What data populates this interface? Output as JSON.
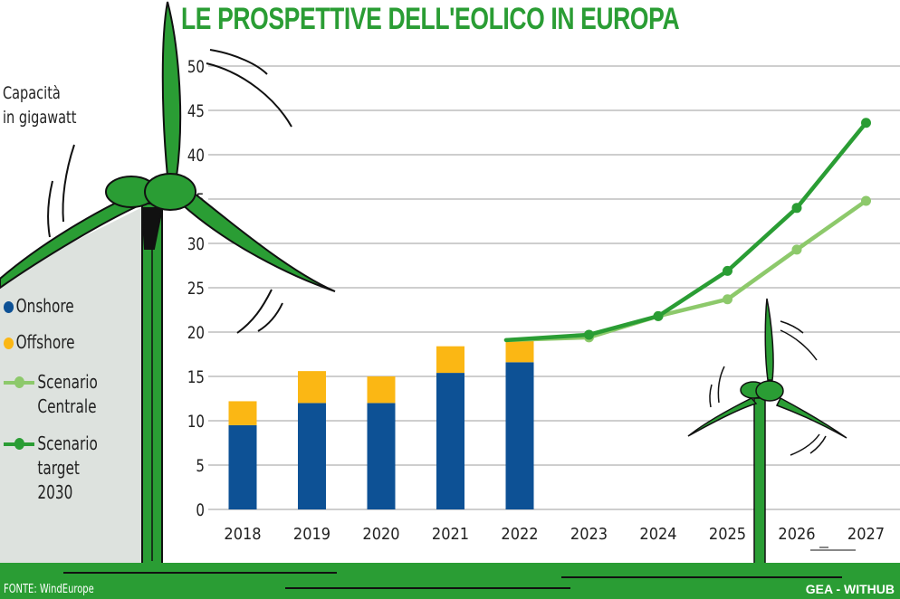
{
  "header": {
    "title": "LE PROSPETTIVE DELL'EOLICO IN EUROPA",
    "unit_label_line1": "Capacità",
    "unit_label_line2": "in gigawatt"
  },
  "legend": {
    "onshore": "Onshore",
    "offshore": "Offshore",
    "central_line1": "Scenario",
    "central_line2": "Centrale",
    "target_line1": "Scenario",
    "target_line2": "target",
    "target_line3": "2030"
  },
  "footer": {
    "source": "FONTE: WindEurope",
    "brand": "GEA - WITHUB"
  },
  "colors": {
    "title": "#2a9d34",
    "onshore": "#0d5195",
    "offshore": "#fbb714",
    "central": "#8dc96b",
    "target": "#2a9d34",
    "ground": "#2a9d34",
    "turbine": "#2a9d34",
    "panel": "#dde2de",
    "grid": "#bdbdbd"
  },
  "icons": [
    "wind-turbine-large",
    "wind-turbine-small"
  ],
  "chart_data": {
    "type": "bar+line",
    "title": "LE PROSPETTIVE DELL'EOLICO IN EUROPA",
    "ylabel": "Capacità in gigawatt",
    "xlabel": "",
    "ylim": [
      0,
      50
    ],
    "yticks": [
      0,
      5,
      10,
      15,
      20,
      25,
      30,
      35,
      40,
      45,
      50
    ],
    "grid": true,
    "legend_position": "left",
    "categories": [
      "2018",
      "2019",
      "2020",
      "2021",
      "2022",
      "2023",
      "2024",
      "2025",
      "2026",
      "2027"
    ],
    "bar_series": [
      {
        "name": "Onshore",
        "stack": "capacity",
        "values": [
          9.5,
          12.0,
          12.0,
          15.4,
          16.6,
          null,
          null,
          null,
          null,
          null
        ]
      },
      {
        "name": "Offshore",
        "stack": "capacity",
        "values": [
          2.7,
          3.6,
          3.0,
          3.0,
          2.5,
          null,
          null,
          null,
          null,
          null
        ]
      }
    ],
    "line_series": [
      {
        "name": "Scenario Centrale",
        "values": [
          null,
          null,
          null,
          null,
          19.1,
          19.4,
          21.8,
          23.7,
          29.3,
          34.8
        ]
      },
      {
        "name": "Scenario target 2030",
        "values": [
          null,
          null,
          null,
          null,
          19.1,
          19.7,
          21.8,
          26.9,
          34.0,
          43.6
        ]
      }
    ]
  }
}
